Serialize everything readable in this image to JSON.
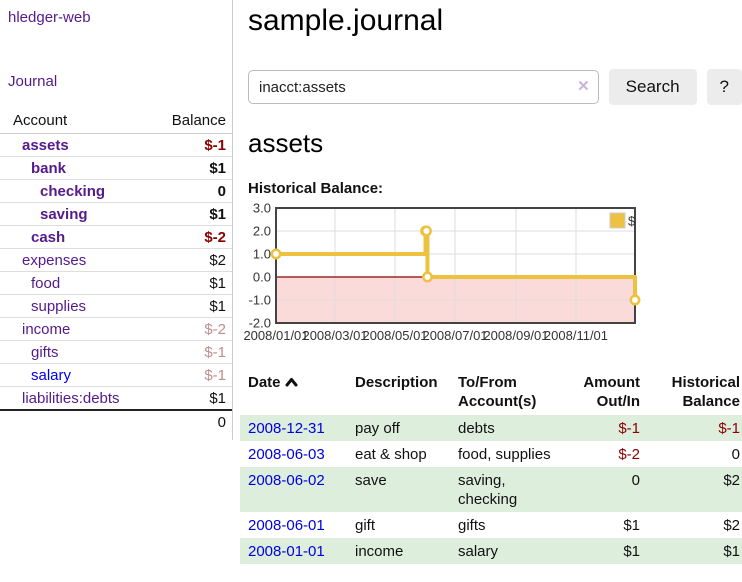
{
  "colors": {
    "link_purple": "#551A8B",
    "link_blue": "#0000EE",
    "date_blue": "#0000dd",
    "negative_strong": "#8b0000",
    "negative_dim": "#bc8f8f",
    "row_stripe_green": "#ddeedd",
    "series_gold": "#EDC240",
    "negative_region_pink": "#fbdada",
    "zero_line_red": "#8b0000"
  },
  "sidebar": {
    "brand": "hledger-web",
    "nav_journal": "Journal",
    "table": {
      "account_header": "Account",
      "balance_header": "Balance",
      "rows": [
        {
          "name": "assets",
          "depth": 1,
          "bold": true,
          "balance": "$-1"
        },
        {
          "name": "bank",
          "depth": 2,
          "bold": true,
          "balance": "$1"
        },
        {
          "name": "checking",
          "depth": 3,
          "bold": true,
          "balance": "0"
        },
        {
          "name": "saving",
          "depth": 3,
          "bold": true,
          "balance": "$1"
        },
        {
          "name": "cash",
          "depth": 2,
          "bold": true,
          "balance": "$-2"
        },
        {
          "name": "expenses",
          "depth": 1,
          "bold": false,
          "balance": "$2"
        },
        {
          "name": "food",
          "depth": 2,
          "bold": false,
          "balance": "$1"
        },
        {
          "name": "supplies",
          "depth": 2,
          "bold": false,
          "balance": "$1"
        },
        {
          "name": "income",
          "depth": 1,
          "bold": false,
          "balance": "$-2"
        },
        {
          "name": "gifts",
          "depth": 2,
          "bold": false,
          "balance": "$-1"
        },
        {
          "name": "salary",
          "depth": 2,
          "bold": false,
          "balance": "$-1",
          "blue": true
        },
        {
          "name": "liabilities:debts",
          "depth": 1,
          "bold": false,
          "balance": "$1"
        }
      ],
      "total": "0"
    }
  },
  "header": {
    "title": "sample.journal"
  },
  "search": {
    "value": "inacct:assets",
    "clear": "✕",
    "button": "Search",
    "help": "?"
  },
  "account_page": {
    "title": "assets",
    "chart_label": "Historical Balance:"
  },
  "chart_data": {
    "type": "line",
    "step": true,
    "title": "Historical Balance:",
    "legend": [
      {
        "label": "$",
        "color": "#EDC240"
      }
    ],
    "legend_position": "top-right",
    "x": [
      "2008-01-01",
      "2008-06-01",
      "2008-06-02",
      "2008-06-03",
      "2008-12-31"
    ],
    "y": [
      1,
      2,
      2,
      0,
      -1
    ],
    "xlim": [
      "2008-01-01",
      "2008-12-31"
    ],
    "ylim": [
      -2,
      3
    ],
    "yticks": [
      "3.0",
      "2.0",
      "1.0",
      "0.0",
      "-1.0",
      "-2.0"
    ],
    "ytick_values": [
      3,
      2,
      1,
      0,
      -1,
      -2
    ],
    "xticks": [
      "2008/01/01",
      "2008/03/01",
      "2008/05/01",
      "2008/07/01",
      "2008/09/01",
      "2008/11/01"
    ],
    "xtick_dates": [
      "2008-01-01",
      "2008-03-01",
      "2008-05-01",
      "2008-07-01",
      "2008-09-01",
      "2008-11-01"
    ],
    "grid": true,
    "negative_region": true
  },
  "register": {
    "columns": {
      "date": "Date",
      "description": "Description",
      "account": "To/From Account(s)",
      "amount": "Amount Out/In",
      "balance": "Historical Balance"
    },
    "sort": "date-ascending",
    "rows": [
      {
        "date": "2008-12-31",
        "description": "pay off",
        "accounts": "debts",
        "amount": "$-1",
        "balance": "$-1"
      },
      {
        "date": "2008-06-03",
        "description": "eat & shop",
        "accounts": "food, supplies",
        "amount": "$-2",
        "balance": "0"
      },
      {
        "date": "2008-06-02",
        "description": "save",
        "accounts": "saving, checking",
        "amount": "0",
        "balance": "$2"
      },
      {
        "date": "2008-06-01",
        "description": "gift",
        "accounts": "gifts",
        "amount": "$1",
        "balance": "$2"
      },
      {
        "date": "2008-01-01",
        "description": "income",
        "accounts": "salary",
        "amount": "$1",
        "balance": "$1"
      }
    ]
  }
}
